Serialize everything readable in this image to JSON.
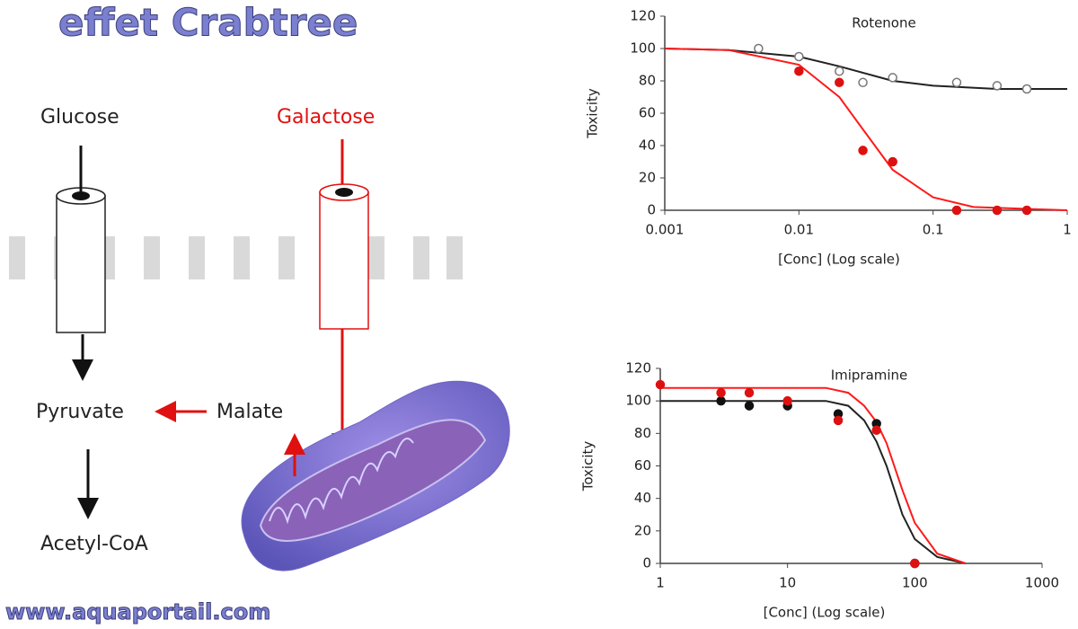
{
  "title": "effet Crabtree",
  "footer": "www.aquaportail.com",
  "diagram": {
    "glucose": "Glucose",
    "galactose": "Galactose",
    "pyruvate": "Pyruvate",
    "malate": "Malate",
    "acetyl": "Acetyl-CoA"
  },
  "chart_data": [
    {
      "type": "scatter",
      "title": "Rotenone",
      "x_label": "[Conc] (Log scale)",
      "y_label": "Toxicity",
      "xscale": "log",
      "xlim": [
        0.001,
        1
      ],
      "xticks": [
        0.001,
        0.01,
        0.1,
        1
      ],
      "ylim": [
        0,
        120
      ],
      "yticks": [
        0,
        20,
        40,
        60,
        80,
        100,
        120
      ],
      "series": [
        {
          "type": "line",
          "color": "#222222",
          "x": [
            0.001,
            0.003,
            0.01,
            0.02,
            0.05,
            0.1,
            0.3,
            1
          ],
          "values": [
            100,
            99,
            95,
            89,
            80,
            77,
            75,
            75
          ]
        },
        {
          "type": "line",
          "color": "#ff1a1a",
          "x": [
            0.001,
            0.003,
            0.01,
            0.02,
            0.03,
            0.05,
            0.1,
            0.2,
            1
          ],
          "values": [
            100,
            99,
            90,
            70,
            50,
            25,
            8,
            2,
            0
          ]
        },
        {
          "type": "scatter",
          "color": "#777777",
          "fill": "#ffffff",
          "x": [
            0.005,
            0.01,
            0.02,
            0.03,
            0.05,
            0.15,
            0.3,
            0.5
          ],
          "values": [
            100,
            95,
            86,
            79,
            82,
            79,
            77,
            75
          ]
        },
        {
          "type": "scatter",
          "color": "#dd1111",
          "fill": "#dd1111",
          "x": [
            0.01,
            0.02,
            0.03,
            0.05,
            0.15,
            0.3,
            0.5
          ],
          "values": [
            86,
            79,
            37,
            30,
            0,
            0,
            0
          ]
        }
      ]
    },
    {
      "type": "scatter",
      "title": "Imipramine",
      "x_label": "[Conc] (Log scale)",
      "y_label": "Toxicity",
      "xscale": "log",
      "xlim": [
        1,
        1000
      ],
      "xticks": [
        1,
        10,
        100,
        1000
      ],
      "ylim": [
        0,
        120
      ],
      "yticks": [
        0,
        20,
        40,
        60,
        80,
        100,
        120
      ],
      "series": [
        {
          "type": "line",
          "color": "#222222",
          "x": [
            1,
            20,
            30,
            40,
            50,
            60,
            80,
            100,
            150,
            250
          ],
          "values": [
            100,
            100,
            97,
            88,
            75,
            60,
            30,
            15,
            4,
            0
          ]
        },
        {
          "type": "line",
          "color": "#ff1a1a",
          "x": [
            1,
            20,
            30,
            40,
            50,
            60,
            80,
            100,
            150,
            250
          ],
          "values": [
            108,
            108,
            105,
            97,
            87,
            74,
            45,
            25,
            6,
            0
          ]
        },
        {
          "type": "scatter",
          "color": "#111111",
          "fill": "#111111",
          "x": [
            3,
            5,
            10,
            25,
            50,
            100
          ],
          "values": [
            100,
            97,
            97,
            92,
            86,
            0
          ]
        },
        {
          "type": "scatter",
          "color": "#dd1111",
          "fill": "#dd1111",
          "x": [
            1,
            3,
            5,
            10,
            25,
            50,
            100
          ],
          "values": [
            110,
            105,
            105,
            100,
            88,
            82,
            0
          ]
        }
      ]
    }
  ]
}
